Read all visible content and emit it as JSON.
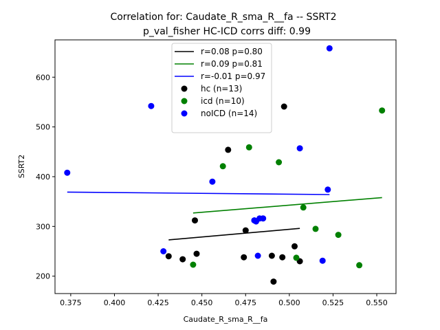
{
  "chart_data": {
    "type": "scatter",
    "title_line1": "Correlation for: Caudate_R_sma_R__fa -- SSRT2",
    "title_line2": "p_val_fisher HC-ICD corrs diff: 0.99",
    "xlabel": "Caudate_R_sma_R__fa",
    "ylabel": "SSRT2",
    "xlim": [
      0.366,
      0.561
    ],
    "ylim": [
      165,
      675
    ],
    "xticks": [
      "0.375",
      "0.400",
      "0.425",
      "0.450",
      "0.475",
      "0.500",
      "0.525",
      "0.550"
    ],
    "yticks": [
      "200",
      "300",
      "400",
      "500",
      "600"
    ],
    "grid": false,
    "legend_position": "top-center",
    "lines": [
      {
        "label": "r=0.08 p=0.80",
        "color": "#000000",
        "x": [
          0.431,
          0.506
        ],
        "y": [
          273,
          296
        ]
      },
      {
        "label": "r=0.09 p=0.81",
        "color": "#008000",
        "x": [
          0.445,
          0.553
        ],
        "y": [
          327,
          358
        ]
      },
      {
        "label": "r=-0.01 p=0.97",
        "color": "#0000ff",
        "x": [
          0.373,
          0.523
        ],
        "y": [
          369,
          364
        ]
      }
    ],
    "series": [
      {
        "label": "hc (n=13)",
        "color": "#000000",
        "points": [
          {
            "x": 0.431,
            "y": 240
          },
          {
            "x": 0.439,
            "y": 234
          },
          {
            "x": 0.446,
            "y": 312
          },
          {
            "x": 0.447,
            "y": 245
          },
          {
            "x": 0.465,
            "y": 454
          },
          {
            "x": 0.474,
            "y": 238
          },
          {
            "x": 0.475,
            "y": 292
          },
          {
            "x": 0.49,
            "y": 241
          },
          {
            "x": 0.491,
            "y": 189
          },
          {
            "x": 0.496,
            "y": 238
          },
          {
            "x": 0.497,
            "y": 541
          },
          {
            "x": 0.503,
            "y": 260
          },
          {
            "x": 0.506,
            "y": 230
          }
        ]
      },
      {
        "label": "icd (n=10)",
        "color": "#008000",
        "points": [
          {
            "x": 0.445,
            "y": 223
          },
          {
            "x": 0.462,
            "y": 421
          },
          {
            "x": 0.477,
            "y": 459
          },
          {
            "x": 0.494,
            "y": 429
          },
          {
            "x": 0.504,
            "y": 237
          },
          {
            "x": 0.508,
            "y": 338
          },
          {
            "x": 0.515,
            "y": 295
          },
          {
            "x": 0.528,
            "y": 283
          },
          {
            "x": 0.54,
            "y": 222
          },
          {
            "x": 0.553,
            "y": 533
          }
        ]
      },
      {
        "label": "noICD (n=14)",
        "color": "#0000ff",
        "points": [
          {
            "x": 0.373,
            "y": 408
          },
          {
            "x": 0.421,
            "y": 542
          },
          {
            "x": 0.428,
            "y": 250
          },
          {
            "x": 0.456,
            "y": 390
          },
          {
            "x": 0.48,
            "y": 312
          },
          {
            "x": 0.481,
            "y": 310
          },
          {
            "x": 0.483,
            "y": 316
          },
          {
            "x": 0.485,
            "y": 316
          },
          {
            "x": 0.482,
            "y": 241
          },
          {
            "x": 0.506,
            "y": 457
          },
          {
            "x": 0.519,
            "y": 231
          },
          {
            "x": 0.522,
            "y": 374
          },
          {
            "x": 0.523,
            "y": 658
          },
          {
            "x": 0.48,
            "y": 312
          }
        ]
      }
    ]
  }
}
